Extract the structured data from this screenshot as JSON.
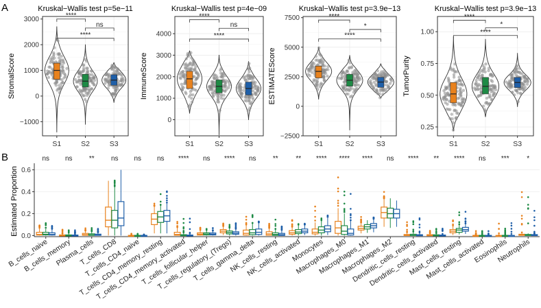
{
  "panels": {
    "a": "A",
    "b": "B"
  },
  "colors": {
    "S1": "#E8821E",
    "S2": "#1E8A45",
    "S3": "#1F5FA8",
    "point": "#8c8c8c"
  },
  "chart_data": [
    {
      "type": "violin",
      "title": "Kruskal−Wallis test p=5e−11",
      "ylabel": "StromalScore",
      "categories": [
        "S1",
        "S2",
        "S3"
      ],
      "ylim": [
        -1550,
        3100
      ],
      "yticks": [
        -1000,
        0,
        1000,
        2000,
        3000
      ],
      "ytick_labels": [
        "−1000",
        "0",
        "1000",
        "2000",
        "3000"
      ],
      "violin_range": [
        [
          -1400,
          2700
        ],
        [
          -1100,
          2000
        ],
        [
          -250,
          1300
        ]
      ],
      "box": [
        {
          "q1": 650,
          "median": 1000,
          "q3": 1280
        },
        {
          "q1": 350,
          "median": 580,
          "q3": 850
        },
        {
          "q1": 420,
          "median": 620,
          "q3": 830
        }
      ],
      "comparisons": [
        {
          "pair": [
            "S1",
            "S2"
          ],
          "y": 3000,
          "label": "****"
        },
        {
          "pair": [
            "S2",
            "S3"
          ],
          "y": 2650,
          "label": "ns"
        },
        {
          "pair": [
            "S1",
            "S3"
          ],
          "y": 2250,
          "label": "****"
        }
      ]
    },
    {
      "type": "violin",
      "title": "Kruskal−Wallis test p=4e−09",
      "ylabel": "ImmuneScore",
      "categories": [
        "S1",
        "S2",
        "S3"
      ],
      "ylim": [
        -750,
        4800
      ],
      "yticks": [
        0,
        1000,
        2000,
        3000,
        4000
      ],
      "ytick_labels": [
        "0",
        "1000",
        "2000",
        "3000",
        "4000"
      ],
      "violin_range": [
        [
          300,
          3200
        ],
        [
          -700,
          3000
        ],
        [
          0,
          2700
        ]
      ],
      "box": [
        {
          "q1": 1450,
          "median": 1900,
          "q3": 2250
        },
        {
          "q1": 1250,
          "median": 1550,
          "q3": 1850
        },
        {
          "q1": 1150,
          "median": 1450,
          "q3": 1750
        }
      ],
      "comparisons": [
        {
          "pair": [
            "S1",
            "S2"
          ],
          "y": 4650,
          "label": "****"
        },
        {
          "pair": [
            "S2",
            "S3"
          ],
          "y": 4250,
          "label": "ns"
        },
        {
          "pair": [
            "S1",
            "S3"
          ],
          "y": 3750,
          "label": "****"
        }
      ]
    },
    {
      "type": "violin",
      "title": "Kruskal−Wallis test p=3.9e−13",
      "ylabel": "ESTIMATEScore",
      "categories": [
        "S1",
        "S2",
        "S3"
      ],
      "ylim": [
        -2500,
        7600
      ],
      "yticks": [
        -2500,
        0,
        2500,
        5000,
        7500
      ],
      "ytick_labels": [
        "−2500",
        "0",
        "2500",
        "5000",
        "7500"
      ],
      "violin_range": [
        [
          600,
          5000
        ],
        [
          -2000,
          4300
        ],
        [
          700,
          3600
        ]
      ],
      "box": [
        {
          "q1": 2400,
          "median": 2950,
          "q3": 3400
        },
        {
          "q1": 1700,
          "median": 2200,
          "q3": 2700
        },
        {
          "q1": 1600,
          "median": 2050,
          "q3": 2450
        }
      ],
      "comparisons": [
        {
          "pair": [
            "S1",
            "S2"
          ],
          "y": 7300,
          "label": "****"
        },
        {
          "pair": [
            "S2",
            "S3"
          ],
          "y": 6500,
          "label": "*"
        },
        {
          "pair": [
            "S1",
            "S3"
          ],
          "y": 5700,
          "label": "****"
        }
      ]
    },
    {
      "type": "violin",
      "title": "Kruskal−Wallis test p=3.9e−13",
      "ylabel": "TumorPurity",
      "categories": [
        "S1",
        "S2",
        "S3"
      ],
      "ylim": [
        0.18,
        1.12
      ],
      "yticks": [
        0.25,
        0.5,
        0.75,
        1.0
      ],
      "ytick_labels": [
        "0.25",
        "0.50",
        "0.75",
        "1.00"
      ],
      "violin_range": [
        [
          0.22,
          0.96
        ],
        [
          0.33,
          0.94
        ],
        [
          0.41,
          0.83
        ]
      ],
      "box": [
        {
          "q1": 0.44,
          "median": 0.51,
          "q3": 0.6
        },
        {
          "q1": 0.51,
          "median": 0.57,
          "q3": 0.64
        },
        {
          "q1": 0.56,
          "median": 0.6,
          "q3": 0.64
        }
      ],
      "comparisons": [
        {
          "pair": [
            "S1",
            "S2"
          ],
          "y": 1.09,
          "label": "****"
        },
        {
          "pair": [
            "S2",
            "S3"
          ],
          "y": 1.03,
          "label": "*"
        },
        {
          "pair": [
            "S1",
            "S3"
          ],
          "y": 0.97,
          "label": "****"
        }
      ]
    },
    {
      "type": "box",
      "ylabel": "Estimated Proportion",
      "ylim": [
        -0.01,
        0.66
      ],
      "yticks": [
        0.0,
        0.2,
        0.4,
        0.6
      ],
      "ytick_labels": [
        "0.0",
        "0.2",
        "0.4",
        "0.6"
      ],
      "groups": [
        "S1",
        "S2",
        "S3"
      ],
      "categories": [
        {
          "name": "B_cells_naive",
          "sig": "ns",
          "boxes": [
            [
              0,
              0.005,
              0.01,
              0.03,
              0.07
            ],
            [
              0,
              0.006,
              0.012,
              0.03,
              0.06
            ],
            [
              0,
              0.005,
              0.01,
              0.025,
              0.06
            ]
          ],
          "max": 0.17
        },
        {
          "name": "B_cells_memory",
          "sig": "ns",
          "boxes": [
            [
              0,
              0,
              0.002,
              0.006,
              0.02
            ],
            [
              0,
              0,
              0.002,
              0.006,
              0.02
            ],
            [
              0,
              0,
              0.002,
              0.005,
              0.015
            ]
          ],
          "max": 0.06
        },
        {
          "name": "Plasma_cells",
          "sig": "**",
          "boxes": [
            [
              0,
              0.003,
              0.008,
              0.02,
              0.045
            ],
            [
              0,
              0.002,
              0.006,
              0.016,
              0.04
            ],
            [
              0,
              0.002,
              0.005,
              0.013,
              0.03
            ]
          ],
          "max": 0.1
        },
        {
          "name": "T_cells_CD8",
          "sig": "ns",
          "boxes": [
            [
              0,
              0.08,
              0.14,
              0.26,
              0.5
            ],
            [
              0,
              0.07,
              0.14,
              0.23,
              0.45
            ],
            [
              0,
              0.09,
              0.16,
              0.31,
              0.6
            ]
          ],
          "max": 0.62
        },
        {
          "name": "T_cells_CD4_naive",
          "sig": "ns",
          "boxes": [
            [
              0,
              0,
              0,
              0.002,
              0.005
            ],
            [
              0,
              0,
              0,
              0.002,
              0.005
            ],
            [
              0,
              0,
              0,
              0.002,
              0.005
            ]
          ],
          "max": 0.02
        },
        {
          "name": "T_cells_CD4_memory_resting",
          "sig": "ns",
          "boxes": [
            [
              0.02,
              0.1,
              0.15,
              0.2,
              0.27
            ],
            [
              0.02,
              0.12,
              0.17,
              0.22,
              0.28
            ],
            [
              0.02,
              0.13,
              0.18,
              0.23,
              0.3
            ]
          ],
          "max": 0.48
        },
        {
          "name": "T_cells_CD4_memory_activated",
          "sig": "****",
          "boxes": [
            [
              0,
              0.003,
              0.01,
              0.03,
              0.07
            ],
            [
              0,
              0,
              0.002,
              0.008,
              0.025
            ],
            [
              0,
              0,
              0.001,
              0.005,
              0.015
            ]
          ],
          "max": 0.28
        },
        {
          "name": "T_cells_follicular_helper",
          "sig": "ns",
          "boxes": [
            [
              0,
              0.005,
              0.013,
              0.025,
              0.05
            ],
            [
              0,
              0.006,
              0.014,
              0.025,
              0.05
            ],
            [
              0,
              0.006,
              0.013,
              0.024,
              0.045
            ]
          ],
          "max": 0.09
        },
        {
          "name": "T_cells_regulatory_(Tregs)",
          "sig": "****",
          "boxes": [
            [
              0.005,
              0.025,
              0.04,
              0.055,
              0.085
            ],
            [
              0,
              0.015,
              0.028,
              0.042,
              0.07
            ],
            [
              0,
              0.012,
              0.022,
              0.035,
              0.06
            ]
          ],
          "max": 0.12
        },
        {
          "name": "T_cells_gamma_delta",
          "sig": "ns",
          "boxes": [
            [
              0,
              0.005,
              0.02,
              0.05,
              0.1
            ],
            [
              0,
              0.008,
              0.025,
              0.055,
              0.11
            ],
            [
              0,
              0.01,
              0.03,
              0.06,
              0.12
            ]
          ],
          "max": 0.22
        },
        {
          "name": "NK_cells_resting",
          "sig": "**",
          "boxes": [
            [
              0,
              0.003,
              0.015,
              0.035,
              0.07
            ],
            [
              0,
              0.002,
              0.01,
              0.025,
              0.06
            ],
            [
              0,
              0.001,
              0.008,
              0.02,
              0.05
            ]
          ],
          "max": 0.18
        },
        {
          "name": "NK_cells_activated",
          "sig": "**",
          "boxes": [
            [
              0,
              0.012,
              0.025,
              0.045,
              0.08
            ],
            [
              0,
              0.018,
              0.032,
              0.055,
              0.1
            ],
            [
              0.005,
              0.025,
              0.04,
              0.06,
              0.1
            ]
          ],
          "max": 0.16
        },
        {
          "name": "Monocytes",
          "sig": "****",
          "boxes": [
            [
              0,
              0.015,
              0.03,
              0.06,
              0.12
            ],
            [
              0,
              0.025,
              0.05,
              0.08,
              0.14
            ],
            [
              0.005,
              0.035,
              0.06,
              0.09,
              0.16
            ]
          ],
          "max": 0.3
        },
        {
          "name": "Macrophages_M0",
          "sig": "****",
          "boxes": [
            [
              0,
              0.02,
              0.07,
              0.13,
              0.25
            ],
            [
              0,
              0.01,
              0.04,
              0.09,
              0.2
            ],
            [
              0,
              0.005,
              0.02,
              0.06,
              0.14
            ]
          ],
          "max": 0.7
        },
        {
          "name": "Macrophages_M1",
          "sig": "****",
          "boxes": [
            [
              0.02,
              0.05,
              0.065,
              0.085,
              0.12
            ],
            [
              0.025,
              0.06,
              0.08,
              0.1,
              0.14
            ],
            [
              0.03,
              0.07,
              0.09,
              0.11,
              0.15
            ]
          ],
          "max": 0.22
        },
        {
          "name": "Macrophages_M2",
          "sig": "ns",
          "boxes": [
            [
              0.08,
              0.16,
              0.21,
              0.26,
              0.34
            ],
            [
              0.07,
              0.16,
              0.2,
              0.25,
              0.34
            ],
            [
              0.08,
              0.16,
              0.2,
              0.24,
              0.32
            ]
          ],
          "max": 0.44
        },
        {
          "name": "Dendritic_cells_resting",
          "sig": "****",
          "boxes": [
            [
              0,
              0,
              0.002,
              0.01,
              0.03
            ],
            [
              0,
              0,
              0.003,
              0.012,
              0.035
            ],
            [
              0,
              0,
              0.002,
              0.008,
              0.025
            ]
          ],
          "max": 0.26
        },
        {
          "name": "Dendritic_cells_activated",
          "sig": "**",
          "boxes": [
            [
              0,
              0,
              0.002,
              0.008,
              0.02
            ],
            [
              0,
              0,
              0.002,
              0.007,
              0.018
            ],
            [
              0,
              0,
              0.001,
              0.005,
              0.015
            ]
          ],
          "max": 0.1
        },
        {
          "name": "Mast_cells_resting",
          "sig": "****",
          "boxes": [
            [
              0.005,
              0.025,
              0.04,
              0.055,
              0.09
            ],
            [
              0.01,
              0.03,
              0.05,
              0.065,
              0.1
            ],
            [
              0.015,
              0.04,
              0.055,
              0.075,
              0.11
            ]
          ],
          "max": 0.24
        },
        {
          "name": "Mast_cells_activated",
          "sig": "ns",
          "boxes": [
            [
              0,
              0,
              0,
              0.002,
              0.005
            ],
            [
              0,
              0,
              0,
              0.002,
              0.005
            ],
            [
              0,
              0,
              0,
              0.002,
              0.005
            ]
          ],
          "max": 0.06
        },
        {
          "name": "Eosinophils",
          "sig": "***",
          "boxes": [
            [
              0,
              0,
              0,
              0.001,
              0.003
            ],
            [
              0,
              0,
              0,
              0.002,
              0.005
            ],
            [
              0,
              0,
              0,
              0.001,
              0.003
            ]
          ],
          "max": 0.14
        },
        {
          "name": "Neutrophils",
          "sig": "*",
          "boxes": [
            [
              0,
              0.002,
              0.006,
              0.012,
              0.025
            ],
            [
              0,
              0.002,
              0.005,
              0.01,
              0.02
            ],
            [
              0,
              0.002,
              0.004,
              0.009,
              0.018
            ]
          ],
          "max": 0.47
        }
      ]
    }
  ]
}
